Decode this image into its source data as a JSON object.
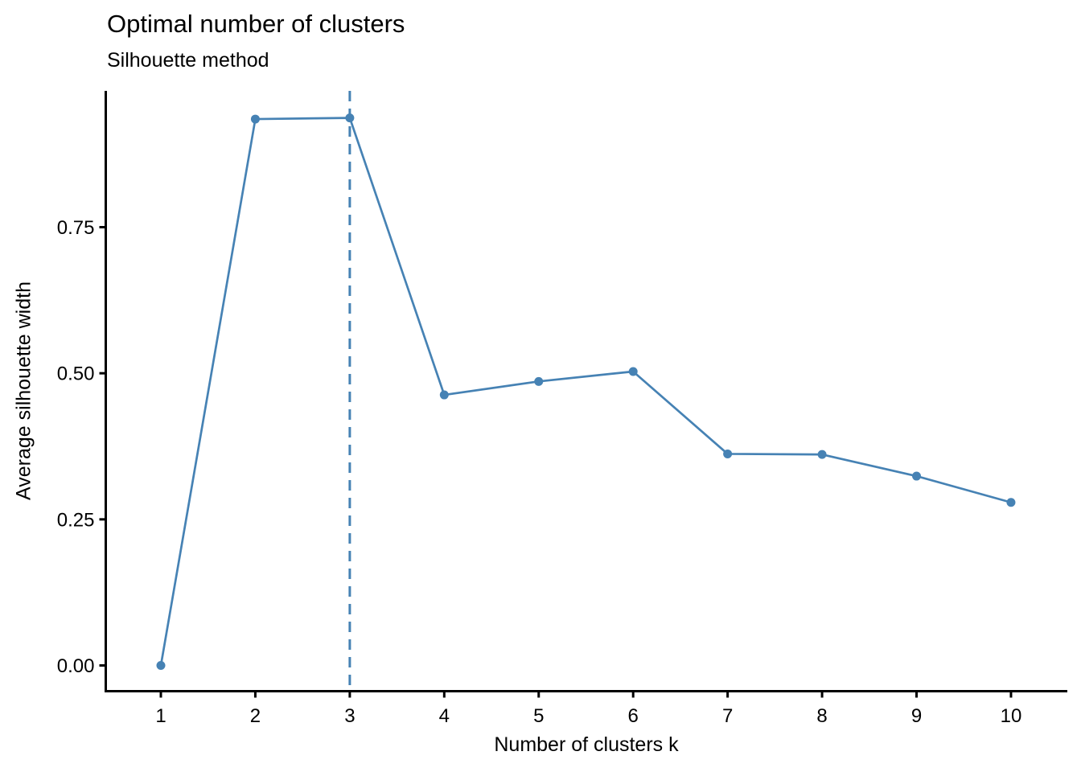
{
  "chart_data": {
    "type": "line",
    "title": "Optimal number of clusters",
    "subtitle": "Silhouette method",
    "xlabel": "Number of clusters k",
    "ylabel": "Average silhouette width",
    "x": [
      1,
      2,
      3,
      4,
      5,
      6,
      7,
      8,
      9,
      10
    ],
    "values": [
      0.0,
      0.935,
      0.937,
      0.463,
      0.486,
      0.503,
      0.362,
      0.361,
      0.324,
      0.279
    ],
    "xticks": [
      1,
      2,
      3,
      4,
      5,
      6,
      7,
      8,
      9,
      10
    ],
    "ytick_values": [
      0,
      0.25,
      0.5,
      0.75
    ],
    "ytick_labels": [
      "0.00",
      "0.25",
      "0.50",
      "0.75"
    ],
    "xlim": [
      0.42,
      10.6
    ],
    "ylim": [
      -0.045,
      0.985
    ],
    "vline_x": 3,
    "annotation": "dashed vertical line marks optimal k = 3",
    "line_color": "#4682B4",
    "point_color": "#4682B4",
    "vline_color": "#4682B4",
    "axis_color": "#000000",
    "grid": false,
    "legend": "none"
  }
}
